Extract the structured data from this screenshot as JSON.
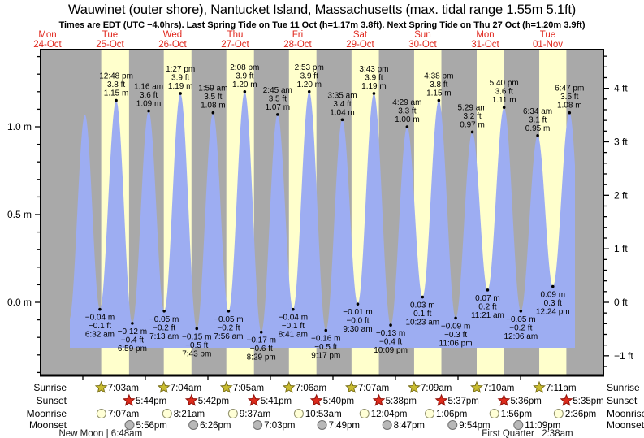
{
  "header": {
    "title": "Wauwinet (outer shore), Nantucket Island, Massachusetts (max. tidal range 1.55m 5.1ft)",
    "subtitle": "Times are EDT (UTC −4.0hrs). Last Spring Tide on Tue 11 Oct (h=1.17m 3.8ft). Next Spring Tide on Thu 27 Oct (h=1.20m 3.9ft)"
  },
  "colors": {
    "night_band": "#a9a9a9",
    "day_band": "#ffffcc",
    "water": "#9dadf2",
    "day_label_red": "#e0281e",
    "axis": "#000000",
    "tide_label": "#000000",
    "sunrise_star_fill": "#c9bc30",
    "sunrise_star_stroke": "#7a701b",
    "sunset_star_fill": "#dd2b1c",
    "sunset_star_stroke": "#8f1008",
    "moonrise_fill": "#ffffd6",
    "moonrise_stroke": "#90906a",
    "moonset_fill": "#b8b8b8",
    "moonset_stroke": "#6e6e6e",
    "phase_text": "#1a1a1a"
  },
  "chart_data": {
    "type": "area",
    "title": "Wauwinet (outer shore), Nantucket Island, Massachusetts (max. tidal range 1.55m 5.1ft)",
    "x_axis_days": [
      {
        "name": "Mon",
        "date": "24-Oct"
      },
      {
        "name": "Tue",
        "date": "25-Oct"
      },
      {
        "name": "Wed",
        "date": "26-Oct"
      },
      {
        "name": "Thu",
        "date": "27-Oct"
      },
      {
        "name": "Fri",
        "date": "28-Oct"
      },
      {
        "name": "Sat",
        "date": "29-Oct"
      },
      {
        "name": "Sun",
        "date": "30-Oct"
      },
      {
        "name": "Mon",
        "date": "31-Oct"
      },
      {
        "name": "Tue",
        "date": "01-Nov"
      }
    ],
    "y_axis_left": {
      "unit": "m",
      "tick_labels": [
        "1.0 m",
        "0.5 m",
        "0.0 m"
      ],
      "tick_values": [
        1.0,
        0.5,
        0.0
      ],
      "minor_step": 0.1
    },
    "y_axis_right": {
      "unit": "ft",
      "tick_labels": [
        "4 ft",
        "3 ft",
        "2 ft",
        "1 ft",
        "0 ft",
        "−1 ft"
      ],
      "tick_values": [
        4,
        3,
        2,
        1,
        0,
        -1
      ],
      "minor_step": 0.2
    },
    "y_range_m": [
      -0.43,
      1.44
    ],
    "tide_events": [
      {
        "day": 0,
        "type": "low",
        "hours": 18.75,
        "height_m": -0.1,
        "labeled": false
      },
      {
        "day": 1,
        "type": "high",
        "hours": 0.82,
        "height_m": 1.07,
        "labeled": false
      },
      {
        "day": 1,
        "type": "low",
        "hours": 6.53,
        "height_m": -0.04,
        "labeled": true,
        "label_m": "−0.04 m",
        "label_ft": "−0.1 ft",
        "label_time": "6:32 am"
      },
      {
        "day": 1,
        "type": "high",
        "hours": 12.8,
        "height_m": 1.15,
        "labeled": true,
        "label_m": "1.15 m",
        "label_ft": "3.8 ft",
        "label_time": "12:48 pm"
      },
      {
        "day": 1,
        "type": "low",
        "hours": 18.98,
        "height_m": -0.12,
        "labeled": true,
        "label_m": "−0.12 m",
        "label_ft": "−0.4 ft",
        "label_time": "6:59 pm"
      },
      {
        "day": 2,
        "type": "high",
        "hours": 1.27,
        "height_m": 1.09,
        "labeled": true,
        "label_m": "1.09 m",
        "label_ft": "3.6 ft",
        "label_time": "1:16 am"
      },
      {
        "day": 2,
        "type": "low",
        "hours": 7.22,
        "height_m": -0.05,
        "labeled": true,
        "label_m": "−0.05 m",
        "label_ft": "−0.2 ft",
        "label_time": "7:13 am"
      },
      {
        "day": 2,
        "type": "high",
        "hours": 13.45,
        "height_m": 1.19,
        "labeled": true,
        "label_m": "1.19 m",
        "label_ft": "3.9 ft",
        "label_time": "1:27 pm"
      },
      {
        "day": 2,
        "type": "low",
        "hours": 19.72,
        "height_m": -0.15,
        "labeled": true,
        "label_m": "−0.15 m",
        "label_ft": "−0.5 ft",
        "label_time": "7:43 pm"
      },
      {
        "day": 3,
        "type": "high",
        "hours": 1.98,
        "height_m": 1.08,
        "labeled": true,
        "label_m": "1.08 m",
        "label_ft": "3.5 ft",
        "label_time": "1:59 am"
      },
      {
        "day": 3,
        "type": "low",
        "hours": 7.93,
        "height_m": -0.05,
        "labeled": true,
        "label_m": "−0.05 m",
        "label_ft": "−0.2 ft",
        "label_time": "7:56 am"
      },
      {
        "day": 3,
        "type": "high",
        "hours": 14.13,
        "height_m": 1.2,
        "labeled": true,
        "label_m": "1.20 m",
        "label_ft": "3.9 ft",
        "label_time": "2:08 pm"
      },
      {
        "day": 3,
        "type": "low",
        "hours": 20.48,
        "height_m": -0.17,
        "labeled": true,
        "label_m": "−0.17 m",
        "label_ft": "−0.6 ft",
        "label_time": "8:29 pm"
      },
      {
        "day": 4,
        "type": "high",
        "hours": 2.75,
        "height_m": 1.07,
        "labeled": true,
        "label_m": "1.07 m",
        "label_ft": "3.5 ft",
        "label_time": "2:45 am"
      },
      {
        "day": 4,
        "type": "low",
        "hours": 8.68,
        "height_m": -0.04,
        "labeled": true,
        "label_m": "−0.04 m",
        "label_ft": "−0.1 ft",
        "label_time": "8:41 am"
      },
      {
        "day": 4,
        "type": "high",
        "hours": 14.88,
        "height_m": 1.2,
        "labeled": true,
        "label_m": "1.20 m",
        "label_ft": "3.9 ft",
        "label_time": "2:53 pm"
      },
      {
        "day": 4,
        "type": "low",
        "hours": 21.28,
        "height_m": -0.16,
        "labeled": true,
        "label_m": "−0.16 m",
        "label_ft": "−0.5 ft",
        "label_time": "9:17 pm"
      },
      {
        "day": 5,
        "type": "high",
        "hours": 3.58,
        "height_m": 1.04,
        "labeled": true,
        "label_m": "1.04 m",
        "label_ft": "3.4 ft",
        "label_time": "3:35 am"
      },
      {
        "day": 5,
        "type": "low",
        "hours": 9.5,
        "height_m": -0.01,
        "labeled": true,
        "label_m": "−0.01 m",
        "label_ft": "−0.0 ft",
        "label_time": "9:30 am"
      },
      {
        "day": 5,
        "type": "high",
        "hours": 15.72,
        "height_m": 1.19,
        "labeled": true,
        "label_m": "1.19 m",
        "label_ft": "3.9 ft",
        "label_time": "3:43 pm"
      },
      {
        "day": 5,
        "type": "low",
        "hours": 22.15,
        "height_m": -0.13,
        "labeled": true,
        "label_m": "−0.13 m",
        "label_ft": "−0.4 ft",
        "label_time": "10:09 pm"
      },
      {
        "day": 6,
        "type": "high",
        "hours": 4.48,
        "height_m": 1.0,
        "labeled": true,
        "label_m": "1.00 m",
        "label_ft": "3.3 ft",
        "label_time": "4:29 am"
      },
      {
        "day": 6,
        "type": "low",
        "hours": 10.38,
        "height_m": 0.03,
        "labeled": true,
        "label_m": "0.03 m",
        "label_ft": "0.1 ft",
        "label_time": "10:23 am"
      },
      {
        "day": 6,
        "type": "high",
        "hours": 16.63,
        "height_m": 1.15,
        "labeled": true,
        "label_m": "1.15 m",
        "label_ft": "3.8 ft",
        "label_time": "4:38 pm"
      },
      {
        "day": 6,
        "type": "low",
        "hours": 23.1,
        "height_m": -0.09,
        "labeled": true,
        "label_m": "−0.09 m",
        "label_ft": "−0.3 ft",
        "label_time": "11:06 pm"
      },
      {
        "day": 7,
        "type": "high",
        "hours": 5.48,
        "height_m": 0.97,
        "labeled": true,
        "label_m": "0.97 m",
        "label_ft": "3.2 ft",
        "label_time": "5:29 am"
      },
      {
        "day": 7,
        "type": "low",
        "hours": 11.35,
        "height_m": 0.07,
        "labeled": true,
        "label_m": "0.07 m",
        "label_ft": "0.2 ft",
        "label_time": "11:21 am"
      },
      {
        "day": 7,
        "type": "high",
        "hours": 17.67,
        "height_m": 1.11,
        "labeled": true,
        "label_m": "1.11 m",
        "label_ft": "3.6 ft",
        "label_time": "5:40 pm"
      },
      {
        "day": 8,
        "type": "low",
        "hours": 0.1,
        "height_m": -0.05,
        "labeled": true,
        "label_m": "−0.05 m",
        "label_ft": "−0.2 ft",
        "label_time": "12:06 am"
      },
      {
        "day": 8,
        "type": "high",
        "hours": 6.57,
        "height_m": 0.95,
        "labeled": true,
        "label_m": "0.95 m",
        "label_ft": "3.1 ft",
        "label_time": "6:34 am"
      },
      {
        "day": 8,
        "type": "low",
        "hours": 12.4,
        "height_m": 0.09,
        "labeled": true,
        "label_m": "0.09 m",
        "label_ft": "0.3 ft",
        "label_time": "12:24 pm"
      },
      {
        "day": 8,
        "type": "high",
        "hours": 18.78,
        "height_m": 1.08,
        "labeled": true,
        "label_m": "1.08 m",
        "label_ft": "3.5 ft",
        "label_time": "6:47 pm"
      },
      {
        "day": 9,
        "type": "low",
        "hours": 1.2,
        "height_m": -0.16,
        "labeled": false
      }
    ]
  },
  "sun_moon": {
    "rows": [
      {
        "key": "sunrise",
        "label": "Sunrise",
        "times": [
          {
            "day": 1,
            "time": "7:03am",
            "hours": 7.05
          },
          {
            "day": 2,
            "time": "7:04am",
            "hours": 7.07
          },
          {
            "day": 3,
            "time": "7:05am",
            "hours": 7.08
          },
          {
            "day": 4,
            "time": "7:06am",
            "hours": 7.1
          },
          {
            "day": 5,
            "time": "7:07am",
            "hours": 7.12
          },
          {
            "day": 6,
            "time": "7:09am",
            "hours": 7.15
          },
          {
            "day": 7,
            "time": "7:10am",
            "hours": 7.17
          },
          {
            "day": 8,
            "time": "7:11am",
            "hours": 7.18
          }
        ]
      },
      {
        "key": "sunset",
        "label": "Sunset",
        "times": [
          {
            "day": 1,
            "time": "5:44pm",
            "hours": 17.73
          },
          {
            "day": 2,
            "time": "5:42pm",
            "hours": 17.7
          },
          {
            "day": 3,
            "time": "5:41pm",
            "hours": 17.68
          },
          {
            "day": 4,
            "time": "5:40pm",
            "hours": 17.67
          },
          {
            "day": 5,
            "time": "5:38pm",
            "hours": 17.63
          },
          {
            "day": 6,
            "time": "5:37pm",
            "hours": 17.62
          },
          {
            "day": 7,
            "time": "5:36pm",
            "hours": 17.6
          },
          {
            "day": 8,
            "time": "5:35pm",
            "hours": 17.58
          }
        ]
      },
      {
        "key": "moonrise",
        "label": "Moonrise",
        "times": [
          {
            "day": 1,
            "time": "7:07am",
            "hours": 7.12
          },
          {
            "day": 2,
            "time": "8:21am",
            "hours": 8.35
          },
          {
            "day": 3,
            "time": "9:37am",
            "hours": 9.62
          },
          {
            "day": 4,
            "time": "10:53am",
            "hours": 10.88
          },
          {
            "day": 5,
            "time": "12:04pm",
            "hours": 12.07
          },
          {
            "day": 6,
            "time": "1:06pm",
            "hours": 13.1
          },
          {
            "day": 7,
            "time": "1:56pm",
            "hours": 13.93
          },
          {
            "day": 8,
            "time": "2:36pm",
            "hours": 14.6
          }
        ]
      },
      {
        "key": "moonset",
        "label": "Moonset",
        "times": [
          {
            "day": 1,
            "time": "5:56pm",
            "hours": 17.93
          },
          {
            "day": 2,
            "time": "6:26pm",
            "hours": 18.43
          },
          {
            "day": 3,
            "time": "7:03pm",
            "hours": 19.05
          },
          {
            "day": 4,
            "time": "7:49pm",
            "hours": 19.82
          },
          {
            "day": 5,
            "time": "8:47pm",
            "hours": 20.78
          },
          {
            "day": 6,
            "time": "9:54pm",
            "hours": 21.9
          },
          {
            "day": 7,
            "time": "11:09pm",
            "hours": 23.15
          }
        ]
      }
    ],
    "phases": [
      {
        "text": "New Moon | 6:48am",
        "day": 1,
        "hours": 6.8
      },
      {
        "text": "First Quarter | 2:38am",
        "day": 8,
        "hours": 2.63
      }
    ]
  }
}
